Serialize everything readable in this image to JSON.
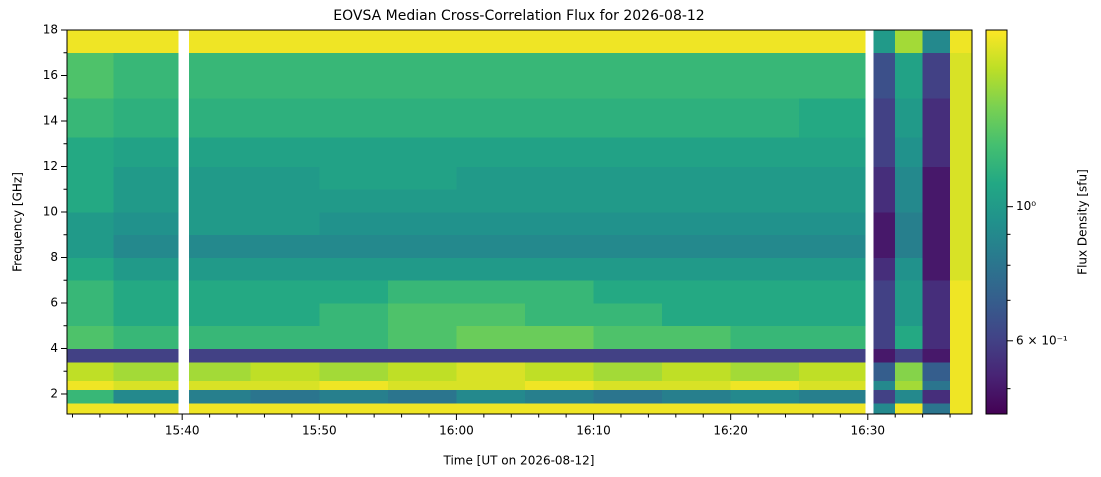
{
  "chart_data": {
    "type": "heatmap",
    "title": "EOVSA Median Cross-Correlation Flux for 2026-08-12",
    "xlabel": "Time [UT on 2026-08-12]",
    "ylabel": "Frequency [GHz]",
    "colorbar_label": "Flux Density [sfu]",
    "colormap": "viridis",
    "color_scale": "log",
    "clim": [
      0.454,
      1.96
    ],
    "xlim": [
      931.6,
      997.6
    ],
    "ylim": [
      1.12,
      18
    ],
    "xticks": [
      {
        "value": 940,
        "label": "15:40"
      },
      {
        "value": 950,
        "label": "15:50"
      },
      {
        "value": 960,
        "label": "16:00"
      },
      {
        "value": 970,
        "label": "16:10"
      },
      {
        "value": 980,
        "label": "16:20"
      },
      {
        "value": 990,
        "label": "16:30"
      }
    ],
    "xticks_minor": [
      932,
      934,
      936,
      938,
      942,
      944,
      946,
      948,
      952,
      954,
      956,
      958,
      962,
      964,
      966,
      968,
      972,
      974,
      976,
      978,
      982,
      984,
      986,
      988,
      992,
      994,
      996
    ],
    "yticks": [
      2,
      4,
      6,
      8,
      10,
      12,
      14,
      16,
      18
    ],
    "yticks_minor": [
      3,
      5,
      7,
      9,
      11,
      13,
      15,
      17
    ],
    "cticks": [
      {
        "value": 1,
        "label": "10⁰"
      },
      {
        "value": 0.6,
        "label": "6 × 10⁻¹"
      }
    ],
    "cticks_minor": [
      0.5,
      0.7,
      0.8,
      0.9
    ],
    "x": [
      931.6,
      935,
      939.7,
      940.5,
      945,
      950,
      955,
      960,
      965,
      970,
      975,
      980,
      985,
      989.8,
      990.4,
      992,
      994,
      996,
      997.6
    ],
    "y": [
      1.12,
      1.6,
      2.2,
      2.6,
      3.4,
      4.0,
      5,
      6,
      7,
      8,
      9,
      10,
      11,
      12,
      13.3,
      15,
      17,
      17.6,
      18
    ],
    "values": [
      [
        1.9,
        1.9,
        null,
        1.9,
        1.9,
        1.9,
        1.9,
        1.9,
        1.9,
        1.9,
        1.9,
        1.9,
        1.9,
        null,
        0.9,
        1.9,
        0.8,
        1.9
      ],
      [
        1.2,
        0.9,
        null,
        0.85,
        0.8,
        0.85,
        0.8,
        0.9,
        0.85,
        0.8,
        0.85,
        0.9,
        0.85,
        null,
        0.6,
        0.9,
        0.55,
        1.9
      ],
      [
        1.9,
        1.8,
        null,
        1.8,
        1.8,
        1.9,
        1.8,
        1.8,
        1.9,
        1.8,
        1.8,
        1.9,
        1.8,
        null,
        0.9,
        1.6,
        0.8,
        1.9
      ],
      [
        1.7,
        1.6,
        null,
        1.6,
        1.7,
        1.6,
        1.7,
        1.8,
        1.7,
        1.6,
        1.7,
        1.6,
        1.7,
        null,
        0.7,
        1.5,
        0.7,
        1.9
      ],
      [
        0.6,
        0.6,
        null,
        0.6,
        0.6,
        0.6,
        0.6,
        0.6,
        0.6,
        0.6,
        0.6,
        0.6,
        0.6,
        null,
        0.5,
        0.6,
        0.5,
        1.9
      ],
      [
        1.3,
        1.2,
        null,
        1.2,
        1.2,
        1.2,
        1.3,
        1.4,
        1.4,
        1.3,
        1.3,
        1.2,
        1.2,
        null,
        0.6,
        1.1,
        0.55,
        1.9
      ],
      [
        1.2,
        1.1,
        null,
        1.1,
        1.1,
        1.2,
        1.3,
        1.3,
        1.2,
        1.2,
        1.1,
        1.1,
        1.1,
        null,
        0.6,
        1.0,
        0.55,
        1.9
      ],
      [
        1.2,
        1.1,
        null,
        1.1,
        1.1,
        1.1,
        1.2,
        1.2,
        1.2,
        1.1,
        1.1,
        1.1,
        1.1,
        null,
        0.6,
        1.0,
        0.55,
        1.9
      ],
      [
        1.1,
        1.0,
        null,
        1.0,
        1.0,
        1.0,
        1.0,
        1.0,
        1.0,
        1.0,
        1.0,
        1.0,
        1.0,
        null,
        0.55,
        0.95,
        0.5,
        1.8
      ],
      [
        1.0,
        0.9,
        null,
        0.9,
        0.9,
        0.9,
        0.9,
        0.9,
        0.9,
        0.9,
        0.9,
        0.9,
        0.9,
        null,
        0.5,
        0.85,
        0.5,
        1.8
      ],
      [
        1.0,
        0.95,
        null,
        1.0,
        1.0,
        0.95,
        0.95,
        0.95,
        0.95,
        0.95,
        0.95,
        0.95,
        0.95,
        null,
        0.5,
        0.85,
        0.5,
        1.8
      ],
      [
        1.1,
        1.0,
        null,
        1.0,
        1.0,
        1.0,
        1.0,
        1.0,
        1.0,
        1.0,
        1.0,
        1.0,
        1.0,
        null,
        0.55,
        0.9,
        0.5,
        1.8
      ],
      [
        1.1,
        1.0,
        null,
        1.0,
        1.0,
        1.05,
        1.05,
        1.0,
        1.0,
        1.0,
        1.0,
        1.0,
        1.0,
        null,
        0.55,
        0.9,
        0.5,
        1.8
      ],
      [
        1.1,
        1.05,
        null,
        1.05,
        1.05,
        1.05,
        1.05,
        1.05,
        1.05,
        1.05,
        1.05,
        1.05,
        1.05,
        null,
        0.6,
        0.95,
        0.55,
        1.8
      ],
      [
        1.2,
        1.15,
        null,
        1.15,
        1.15,
        1.15,
        1.15,
        1.15,
        1.15,
        1.15,
        1.15,
        1.15,
        1.1,
        null,
        0.6,
        1.0,
        0.55,
        1.8
      ],
      [
        1.3,
        1.2,
        null,
        1.2,
        1.2,
        1.2,
        1.2,
        1.2,
        1.2,
        1.2,
        1.2,
        1.2,
        1.2,
        null,
        0.65,
        1.05,
        0.6,
        1.8
      ],
      [
        1.9,
        1.9,
        null,
        1.9,
        1.9,
        1.9,
        1.9,
        1.9,
        1.9,
        1.9,
        1.9,
        1.9,
        1.9,
        null,
        1.0,
        1.6,
        0.9,
        1.9
      ],
      [
        1.9,
        1.9,
        null,
        1.9,
        1.9,
        1.9,
        1.9,
        1.9,
        1.9,
        1.9,
        1.9,
        1.9,
        1.9,
        null,
        1.0,
        1.6,
        0.9,
        1.9
      ]
    ]
  }
}
